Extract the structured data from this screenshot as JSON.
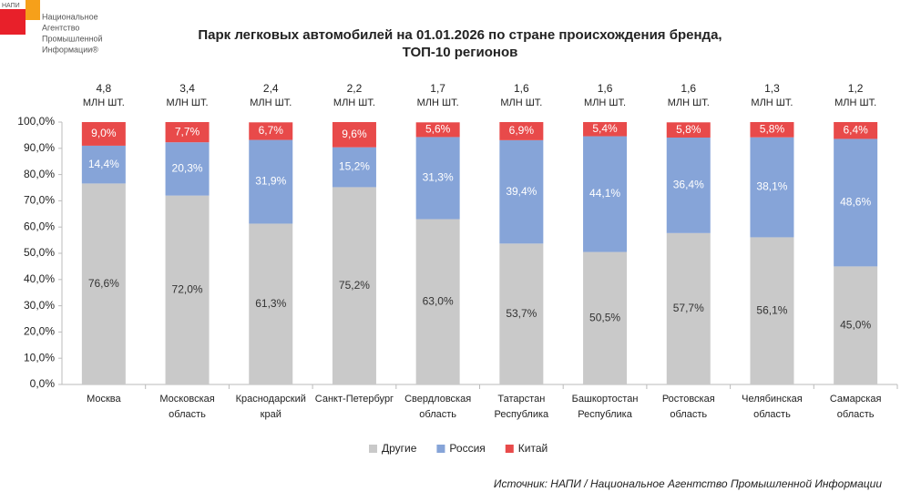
{
  "logo": {
    "abbr": "НАПИ",
    "lines": [
      "Национальное",
      "Агентство",
      "Промышленной",
      "Информации®"
    ]
  },
  "chart_data": {
    "type": "stacked_bar",
    "title": [
      "Парк легковых автомобилей на 01.01.2026 по стране происхождения бренда,",
      "ТОП-10 регионов"
    ],
    "categories": [
      [
        "Москва"
      ],
      [
        "Московская",
        "область"
      ],
      [
        "Краснодарский",
        "край"
      ],
      [
        "Санкт-Петербург"
      ],
      [
        "Свердловская",
        "область"
      ],
      [
        "Татарстан",
        "Республика"
      ],
      [
        "Башкортостан",
        "Республика"
      ],
      [
        "Ростовская",
        "область"
      ],
      [
        "Челябинская",
        "область"
      ],
      [
        "Самарская",
        "область"
      ]
    ],
    "totals": {
      "unit": "МЛН ШТ.",
      "values": [
        4.8,
        3.4,
        2.4,
        2.2,
        1.7,
        1.6,
        1.6,
        1.6,
        1.3,
        1.2
      ],
      "value_labels": [
        "4,8",
        "3,4",
        "2,4",
        "2,2",
        "1,7",
        "1,6",
        "1,6",
        "1,6",
        "1,3",
        "1,2"
      ]
    },
    "series": [
      {
        "name": "Другие",
        "color": "#c9c9c9",
        "label_color": "#333333",
        "values": [
          76.6,
          72.0,
          61.3,
          75.2,
          63.0,
          53.7,
          50.5,
          57.7,
          56.1,
          45.0
        ],
        "value_labels": [
          "76,6%",
          "72,0%",
          "61,3%",
          "75,2%",
          "63,0%",
          "53,7%",
          "50,5%",
          "57,7%",
          "56,1%",
          "45,0%"
        ]
      },
      {
        "name": "Россия",
        "color": "#86a4d8",
        "label_color": "#ffffff",
        "values": [
          14.4,
          20.3,
          31.9,
          15.2,
          31.3,
          39.4,
          44.1,
          36.4,
          38.1,
          48.6
        ],
        "value_labels": [
          "14,4%",
          "20,3%",
          "31,9%",
          "15,2%",
          "31,3%",
          "39,4%",
          "44,1%",
          "36,4%",
          "38,1%",
          "48,6%"
        ]
      },
      {
        "name": "Китай",
        "color": "#e84a4a",
        "label_color": "#ffffff",
        "values": [
          9.0,
          7.7,
          6.7,
          9.6,
          5.6,
          6.9,
          5.4,
          5.8,
          5.8,
          6.4
        ],
        "value_labels": [
          "9,0%",
          "7,7%",
          "6,7%",
          "9,6%",
          "5,6%",
          "6,9%",
          "5,4%",
          "5,8%",
          "5,8%",
          "6,4%"
        ]
      }
    ],
    "ylim": [
      0,
      100
    ],
    "yticks": [
      {
        "value": 0,
        "label": "0,0%"
      },
      {
        "value": 10,
        "label": "10,0%"
      },
      {
        "value": 20,
        "label": "20,0%"
      },
      {
        "value": 30,
        "label": "30,0%"
      },
      {
        "value": 40,
        "label": "40,0%"
      },
      {
        "value": 50,
        "label": "50,0%"
      },
      {
        "value": 60,
        "label": "60,0%"
      },
      {
        "value": 70,
        "label": "70,0%"
      },
      {
        "value": 80,
        "label": "80,0%"
      },
      {
        "value": 90,
        "label": "90,0%"
      },
      {
        "value": 100,
        "label": "100,0%"
      }
    ],
    "grid": false,
    "legend": "bottom",
    "source": "Источник: НАПИ / Национальное Агентство Промышленной Информации"
  }
}
